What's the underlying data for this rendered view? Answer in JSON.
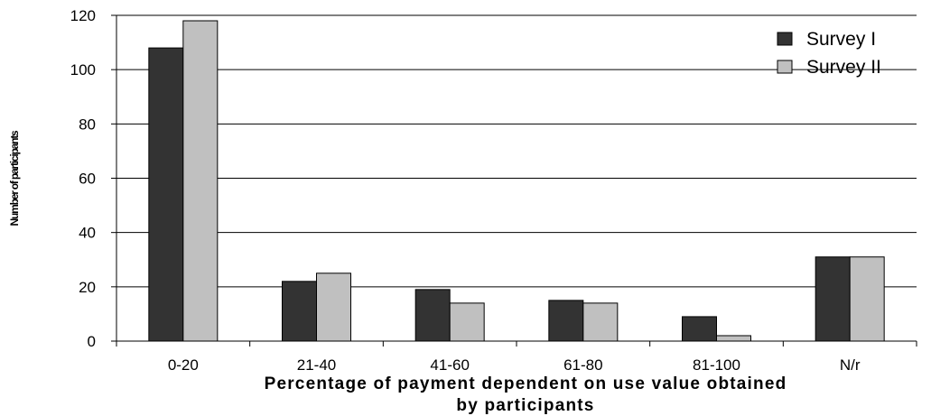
{
  "chart_data": {
    "type": "bar",
    "categories": [
      "0-20",
      "21-40",
      "41-60",
      "61-80",
      "81-100",
      "N/r"
    ],
    "series": [
      {
        "name": "Survey I",
        "values": [
          108,
          22,
          19,
          15,
          9,
          31
        ],
        "color": "#333333"
      },
      {
        "name": "Survey II",
        "values": [
          118,
          25,
          14,
          14,
          2,
          31
        ],
        "color": "#c0c0c0"
      }
    ],
    "ylim": [
      0,
      120
    ],
    "yticks": [
      0,
      20,
      40,
      60,
      80,
      100,
      120
    ],
    "xlabel_line1": "Percentage  of payment dependent on use value obtained",
    "xlabel_line2": "by participants",
    "ylabel": "Number of participants",
    "grid": true,
    "legend_position": "top-right"
  }
}
